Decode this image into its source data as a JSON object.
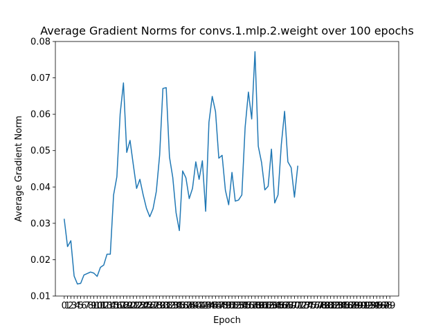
{
  "chart_data": {
    "type": "line",
    "title": "Average Gradient Norms for convs.1.mlp.2.weight over 100 epochs",
    "xlabel": "Epoch",
    "ylabel": "Average Gradient Norm",
    "xlim": [
      -2.7,
      101.7
    ],
    "ylim": [
      0.01,
      0.08
    ],
    "yticks": [
      0.01,
      0.02,
      0.03,
      0.04,
      0.05,
      0.06,
      0.07,
      0.08
    ],
    "ytick_labels": [
      "0.01",
      "0.02",
      "0.03",
      "0.04",
      "0.05",
      "0.06",
      "0.07",
      "0.08"
    ],
    "xticks": [
      0,
      1,
      2,
      3,
      4,
      5,
      6,
      7,
      8,
      9,
      10,
      11,
      12,
      13,
      14,
      15,
      16,
      17,
      18,
      19,
      20,
      21,
      22,
      23,
      24,
      25,
      26,
      27,
      28,
      29,
      30,
      31,
      32,
      33,
      34,
      35,
      36,
      37,
      38,
      39,
      40,
      41,
      42,
      43,
      44,
      45,
      46,
      47,
      48,
      49,
      50,
      51,
      52,
      53,
      54,
      55,
      56,
      57,
      58,
      59,
      60,
      61,
      62,
      63,
      64,
      65,
      66,
      67,
      68,
      69,
      70,
      71,
      72,
      73,
      74,
      75,
      76,
      77,
      78,
      79,
      80,
      81,
      82,
      83,
      84,
      85,
      86,
      87,
      88,
      89,
      90,
      91,
      92,
      93,
      94,
      95,
      96,
      97,
      98,
      99
    ],
    "grid": false,
    "line_color": "#1f77b4",
    "series": [
      {
        "x": [
          0,
          1,
          2,
          3,
          4,
          5,
          6,
          7,
          8,
          9,
          10,
          11,
          12,
          13,
          14,
          15,
          16,
          17,
          18,
          19,
          20,
          21,
          22,
          23,
          24,
          25,
          26,
          27,
          28,
          29,
          30,
          31,
          32,
          33,
          34,
          35,
          36,
          37,
          38,
          39,
          40,
          41,
          42,
          43,
          44,
          45,
          46,
          47,
          48,
          49,
          50,
          51,
          52,
          53,
          54,
          55,
          56,
          57,
          58,
          59,
          60,
          61,
          62,
          63,
          64,
          65,
          66,
          67,
          68,
          69,
          70,
          71
        ],
        "values": [
          0.0311,
          0.0236,
          0.0252,
          0.0155,
          0.0133,
          0.0135,
          0.0158,
          0.0162,
          0.0166,
          0.0163,
          0.0154,
          0.0179,
          0.0185,
          0.0215,
          0.0215,
          0.0378,
          0.0428,
          0.0601,
          0.0686,
          0.0495,
          0.0528,
          0.0461,
          0.0396,
          0.0421,
          0.0378,
          0.0341,
          0.0318,
          0.034,
          0.0388,
          0.0487,
          0.0671,
          0.0673,
          0.0482,
          0.0426,
          0.0329,
          0.028,
          0.0444,
          0.0425,
          0.0368,
          0.0396,
          0.0469,
          0.0421,
          0.0472,
          0.0333,
          0.0578,
          0.0649,
          0.0607,
          0.0479,
          0.0487,
          0.0391,
          0.0351,
          0.044,
          0.0361,
          0.0364,
          0.0378,
          0.0564,
          0.0661,
          0.0587,
          0.0772,
          0.0512,
          0.0467,
          0.0392,
          0.0402,
          0.0504,
          0.0356,
          0.0378,
          0.0516,
          0.0608,
          0.0469,
          0.0453,
          0.0372,
          0.0457
        ]
      }
    ]
  }
}
